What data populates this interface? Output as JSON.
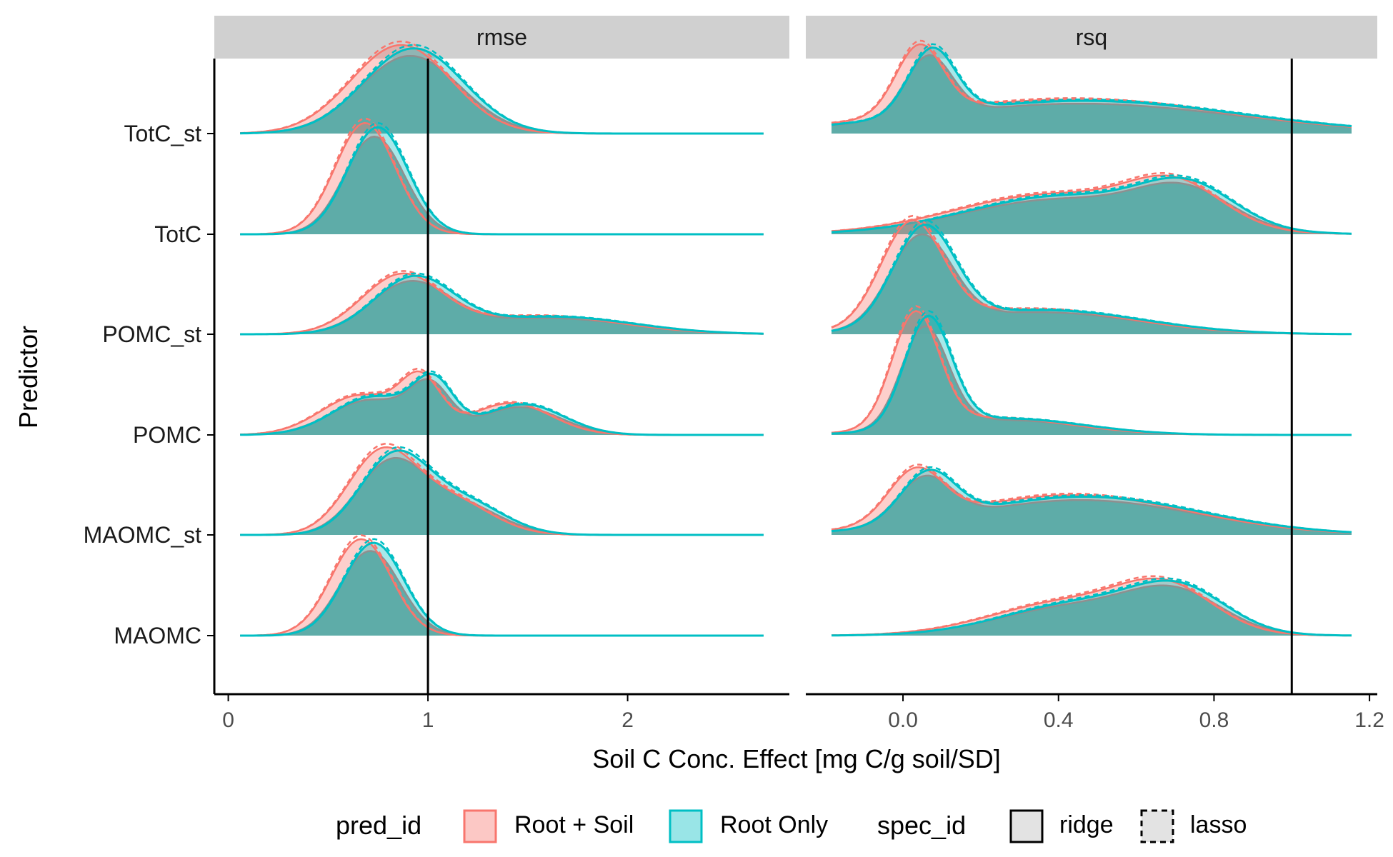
{
  "chart_data": {
    "type": "density-ridges",
    "xlabel": "Soil C Conc. Effect [mg C/g soil/SD]",
    "ylabel": "Predictor",
    "colors": {
      "Root + Soil": "#F8766D",
      "Root Only": "#00BFC4",
      "overlap": "#5aaaa6",
      "grey_curve": "#8f8f8f",
      "strip": "#d0d0d0"
    },
    "categories": [
      "TotC_st",
      "TotC",
      "POMC_st",
      "POMC",
      "MAOMC_st",
      "MAOMC"
    ],
    "panels": [
      {
        "name": "rmse",
        "xlim": [
          -0.07,
          2.81
        ],
        "ticks": [
          0,
          1,
          2
        ],
        "tick_labels": [
          "0",
          "1",
          "2"
        ],
        "reference_line": 1.0,
        "series": [
          {
            "predictor": "TotC_st",
            "peaks": [
              {
                "mean": 0.9,
                "sd": 0.25,
                "peak": 0.78
              }
            ]
          },
          {
            "predictor": "TotC",
            "peaks": [
              {
                "mean": 0.72,
                "sd": 0.15,
                "peak": 0.98
              }
            ]
          },
          {
            "predictor": "POMC_st",
            "peaks": [
              {
                "mean": 0.9,
                "sd": 0.2,
                "peak": 0.5
              },
              {
                "mean": 1.6,
                "sd": 0.4,
                "peak": 0.16
              }
            ]
          },
          {
            "predictor": "POMC",
            "peaks": [
              {
                "mean": 0.7,
                "sd": 0.2,
                "peak": 0.35
              },
              {
                "mean": 1.0,
                "sd": 0.1,
                "peak": 0.42
              },
              {
                "mean": 1.45,
                "sd": 0.2,
                "peak": 0.28
              }
            ]
          },
          {
            "predictor": "MAOMC_st",
            "peaks": [
              {
                "mean": 0.8,
                "sd": 0.17,
                "peak": 0.7
              },
              {
                "mean": 1.15,
                "sd": 0.2,
                "peak": 0.3
              }
            ]
          },
          {
            "predictor": "MAOMC",
            "peaks": [
              {
                "mean": 0.7,
                "sd": 0.15,
                "peak": 0.85
              }
            ]
          }
        ]
      },
      {
        "name": "rsq",
        "xlim": [
          -0.25,
          1.22
        ],
        "ticks": [
          0.0,
          0.4,
          0.8,
          1.2
        ],
        "tick_labels": [
          "0.0",
          "0.4",
          "0.8",
          "1.2"
        ],
        "reference_line": 1.0,
        "series": [
          {
            "predictor": "TotC_st",
            "peaks": [
              {
                "mean": 0.06,
                "sd": 0.06,
                "peak": 0.6
              },
              {
                "mean": 0.45,
                "sd": 0.4,
                "peak": 0.3
              }
            ]
          },
          {
            "predictor": "TotC",
            "peaks": [
              {
                "mean": 0.4,
                "sd": 0.25,
                "peak": 0.35
              },
              {
                "mean": 0.72,
                "sd": 0.12,
                "peak": 0.35
              }
            ]
          },
          {
            "predictor": "POMC_st",
            "peaks": [
              {
                "mean": 0.04,
                "sd": 0.08,
                "peak": 0.9
              },
              {
                "mean": 0.35,
                "sd": 0.25,
                "peak": 0.22
              }
            ]
          },
          {
            "predictor": "POMC",
            "peaks": [
              {
                "mean": 0.05,
                "sd": 0.06,
                "peak": 1.0
              },
              {
                "mean": 0.25,
                "sd": 0.2,
                "peak": 0.15
              }
            ]
          },
          {
            "predictor": "MAOMC_st",
            "peaks": [
              {
                "mean": 0.05,
                "sd": 0.07,
                "peak": 0.45
              },
              {
                "mean": 0.45,
                "sd": 0.3,
                "peak": 0.35
              }
            ]
          },
          {
            "predictor": "MAOMC",
            "peaks": [
              {
                "mean": 0.45,
                "sd": 0.2,
                "peak": 0.3
              },
              {
                "mean": 0.7,
                "sd": 0.12,
                "peak": 0.35
              }
            ]
          }
        ]
      }
    ],
    "legend": {
      "position": "bottom",
      "pred_title": "pred_id",
      "pred_items": [
        "Root + Soil",
        "Root Only"
      ],
      "spec_title": "spec_id",
      "spec_items": [
        "ridge",
        "lasso"
      ]
    }
  }
}
